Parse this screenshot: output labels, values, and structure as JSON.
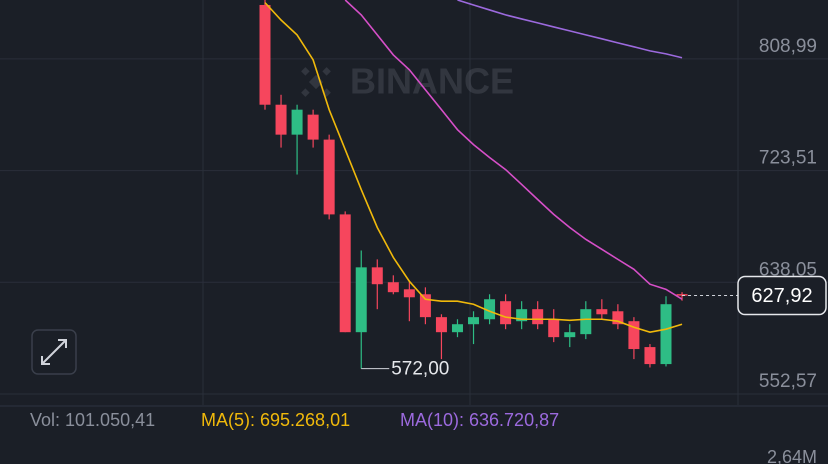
{
  "chart_data": {
    "type": "candlestick",
    "watermark": "BINANCE",
    "up_color": "#2ebd85",
    "down_color": "#f6465d",
    "ylim": [
      544.2,
      854.0
    ],
    "yticks": [
      {
        "value": 552.57,
        "label": "552,57"
      },
      {
        "value": 638.05,
        "label": "638,05"
      },
      {
        "value": 723.51,
        "label": "723,51"
      },
      {
        "value": 808.99,
        "label": "808,99"
      }
    ],
    "grid": true,
    "candles": [
      {
        "open": 850.2,
        "high": 854.0,
        "low": 770.1,
        "close": 773.9
      },
      {
        "open": 773.9,
        "high": 781.5,
        "low": 741.1,
        "close": 751.0
      },
      {
        "open": 751.0,
        "high": 773.9,
        "low": 720.5,
        "close": 770.1
      },
      {
        "open": 766.3,
        "high": 770.1,
        "low": 741.1,
        "close": 747.2
      },
      {
        "open": 747.2,
        "high": 751.0,
        "low": 686.2,
        "close": 690.0
      },
      {
        "open": 690.0,
        "high": 692.3,
        "low": 599.9,
        "close": 599.9
      },
      {
        "open": 599.9,
        "high": 662.4,
        "low": 572.0,
        "close": 649.5
      },
      {
        "open": 649.5,
        "high": 655.6,
        "low": 617.5,
        "close": 636.6
      },
      {
        "open": 638.1,
        "high": 643.4,
        "low": 628.9,
        "close": 630.5
      },
      {
        "open": 632.7,
        "high": 638.1,
        "low": 608.3,
        "close": 626.6
      },
      {
        "open": 628.9,
        "high": 634.2,
        "low": 606.0,
        "close": 611.4
      },
      {
        "open": 611.4,
        "high": 613.6,
        "low": 579.3,
        "close": 599.9
      },
      {
        "open": 599.9,
        "high": 609.8,
        "low": 596.1,
        "close": 606.0
      },
      {
        "open": 606.0,
        "high": 615.9,
        "low": 590.8,
        "close": 611.4
      },
      {
        "open": 609.8,
        "high": 628.9,
        "low": 606.0,
        "close": 625.1
      },
      {
        "open": 623.6,
        "high": 628.9,
        "low": 602.2,
        "close": 606.0
      },
      {
        "open": 608.3,
        "high": 623.6,
        "low": 602.2,
        "close": 617.5
      },
      {
        "open": 617.5,
        "high": 623.6,
        "low": 602.2,
        "close": 606.0
      },
      {
        "open": 609.8,
        "high": 617.5,
        "low": 592.3,
        "close": 596.1
      },
      {
        "open": 596.1,
        "high": 606.0,
        "low": 588.5,
        "close": 599.9
      },
      {
        "open": 598.4,
        "high": 623.6,
        "low": 594.6,
        "close": 617.5
      },
      {
        "open": 617.5,
        "high": 625.1,
        "low": 609.8,
        "close": 613.6
      },
      {
        "open": 615.9,
        "high": 621.3,
        "low": 602.2,
        "close": 606.0
      },
      {
        "open": 608.3,
        "high": 611.4,
        "low": 579.3,
        "close": 587.0
      },
      {
        "open": 588.5,
        "high": 590.8,
        "low": 572.9,
        "close": 575.5
      },
      {
        "open": 575.5,
        "high": 627.4,
        "low": 573.7,
        "close": 621.3
      },
      {
        "open": 629.0,
        "high": 630.5,
        "low": 624.0,
        "close": 627.92
      }
    ],
    "lines": [
      {
        "color": "#f0b90b",
        "values": [
          852.0,
          838.7,
          827.3,
          808.2,
          770.1,
          739.6,
          709.0,
          680.0,
          657.1,
          638.8,
          625.1,
          623.6,
          623.6,
          621.3,
          615.9,
          611.4,
          609.8,
          609.8,
          609.8,
          609.0,
          609.8,
          609.8,
          608.3,
          603.7,
          599.9,
          602.2,
          606.0
        ]
      },
      {
        "color": "#d64fc8",
        "values": [
          null,
          null,
          null,
          null,
          null,
          854.0,
          842.6,
          827.3,
          812.0,
          800.6,
          785.3,
          770.1,
          754.8,
          743.4,
          733.5,
          724.3,
          712.9,
          701.4,
          690.0,
          680.0,
          670.9,
          663.3,
          655.6,
          648.0,
          636.6,
          632.7,
          625.1
        ]
      },
      {
        "color": "#9c6ade",
        "values": [
          null,
          null,
          null,
          null,
          null,
          null,
          null,
          null,
          null,
          null,
          null,
          null,
          854.0,
          850.2,
          846.4,
          842.6,
          839.5,
          836.5,
          833.4,
          830.4,
          827.3,
          824.3,
          821.2,
          818.2,
          815.1,
          812.8,
          809.8
        ]
      }
    ],
    "current_price": {
      "value": 627.92,
      "label": "627,92"
    },
    "low_marker": {
      "value": 572.0,
      "label": "572,00"
    },
    "volume_header": {
      "vol": "Vol: 101.050,41",
      "ma5": "MA(5): 695.268,01",
      "ma10": "MA(10): 636.720,87"
    },
    "volume_axis_label": "2,64M"
  }
}
